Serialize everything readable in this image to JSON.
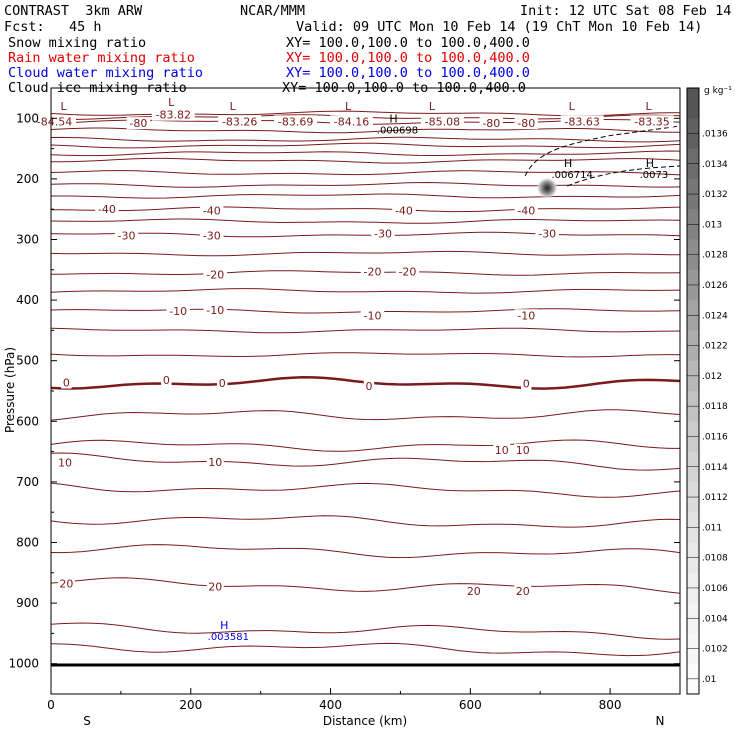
{
  "header": {
    "title": "CONTRAST  3km ARW",
    "org": "NCAR/MMM",
    "init": "Init: 12 UTC Sat 08 Feb 14",
    "fcst": "Fcst:   45 h",
    "valid": "Valid: 09 UTC Mon 10 Feb 14 (19 ChT Mon 10 Feb 14)",
    "fields": [
      {
        "name": "Snow mixing ratio",
        "xy": "XY= 100.0,100.0 to 100.0,400.0",
        "color": "#000000"
      },
      {
        "name": "Rain water mixing ratio",
        "xy": "XY= 100.0,100.0 to 100.0,400.0",
        "color": "#e00000"
      },
      {
        "name": "Cloud water mixing ratio",
        "xy": "XY= 100.0,100.0 to 100.0,400.0",
        "color": "#0000e0"
      },
      {
        "name": "Cloud ice mixing ratio",
        "xy": "XY= 100.0,100.0 to 100.0,400.0",
        "color": "#000000"
      }
    ]
  },
  "chart_data": {
    "type": "cross-section contour",
    "xlabel": "Distance (km)",
    "ylabel": "Pressure (hPa)",
    "xlim": [
      0,
      900
    ],
    "ylim": [
      1050,
      50
    ],
    "x_ticks": [
      "0",
      "200",
      "400",
      "600",
      "800"
    ],
    "x_tick_values": [
      0,
      200,
      400,
      600,
      800
    ],
    "y_ticks": [
      "100",
      "200",
      "300",
      "400",
      "500",
      "600",
      "700",
      "800",
      "900",
      "1000"
    ],
    "y_tick_values": [
      100,
      200,
      300,
      400,
      500,
      600,
      700,
      800,
      900,
      1000
    ],
    "endpoints": {
      "left": "S",
      "right": "N"
    },
    "colorbar": {
      "unit": "g kg⁻¹",
      "labels": [
        ".0136",
        ".0134",
        ".0132",
        ".013",
        ".0128",
        ".0126",
        ".0124",
        ".0122",
        ".012",
        ".0118",
        ".0116",
        ".0114",
        ".0112",
        ".011",
        ".0108",
        ".0106",
        ".0104",
        ".0102",
        ".01"
      ],
      "colors": [
        "#555555",
        "#606060",
        "#6c6c6c",
        "#777777",
        "#828282",
        "#8d8d8d",
        "#989898",
        "#a3a3a3",
        "#aeaeae",
        "#b8b8b8",
        "#c2c2c2",
        "#cbcbcb",
        "#d3d3d3",
        "#dbdbdb",
        "#e2e2e2",
        "#e8e8e8",
        "#eeeeee",
        "#f3f3f3",
        "#f7f7f7",
        "#fbfbfb"
      ]
    },
    "temperature_labels": [
      {
        "text": "-84.54",
        "x": 5,
        "p": 105
      },
      {
        "text": "-80",
        "x": 125,
        "p": 108
      },
      {
        "text": "-83.82",
        "x": 175,
        "p": 94
      },
      {
        "text": "-83.26",
        "x": 270,
        "p": 105
      },
      {
        "text": "-83.69",
        "x": 350,
        "p": 105
      },
      {
        "text": "-84.16",
        "x": 430,
        "p": 105
      },
      {
        "text": "-85.08",
        "x": 560,
        "p": 105
      },
      {
        "text": "-80",
        "x": 630,
        "p": 108
      },
      {
        "text": "-80",
        "x": 680,
        "p": 108
      },
      {
        "text": "-83.63",
        "x": 760,
        "p": 105
      },
      {
        "text": "-83.35",
        "x": 860,
        "p": 105
      },
      {
        "text": "-40",
        "x": 80,
        "p": 250
      },
      {
        "text": "-40",
        "x": 230,
        "p": 252
      },
      {
        "text": "-40",
        "x": 505,
        "p": 252
      },
      {
        "text": "-40",
        "x": 680,
        "p": 252
      },
      {
        "text": "-30",
        "x": 108,
        "p": 293
      },
      {
        "text": "-30",
        "x": 230,
        "p": 293
      },
      {
        "text": "-30",
        "x": 475,
        "p": 290
      },
      {
        "text": "-30",
        "x": 710,
        "p": 290
      },
      {
        "text": "-20",
        "x": 235,
        "p": 358
      },
      {
        "text": "-20",
        "x": 460,
        "p": 353
      },
      {
        "text": "-20",
        "x": 510,
        "p": 353
      },
      {
        "text": "-10",
        "x": 182,
        "p": 418
      },
      {
        "text": "-10",
        "x": 235,
        "p": 416
      },
      {
        "text": "-10",
        "x": 460,
        "p": 425
      },
      {
        "text": "-10",
        "x": 680,
        "p": 425
      },
      {
        "text": "0",
        "x": 22,
        "p": 536
      },
      {
        "text": "0",
        "x": 165,
        "p": 532
      },
      {
        "text": "0",
        "x": 245,
        "p": 537
      },
      {
        "text": "0",
        "x": 455,
        "p": 542
      },
      {
        "text": "0",
        "x": 680,
        "p": 538
      },
      {
        "text": "10",
        "x": 20,
        "p": 668
      },
      {
        "text": "10",
        "x": 235,
        "p": 667
      },
      {
        "text": "10",
        "x": 645,
        "p": 647
      },
      {
        "text": "10",
        "x": 675,
        "p": 647
      },
      {
        "text": "20",
        "x": 22,
        "p": 868
      },
      {
        "text": "20",
        "x": 235,
        "p": 873
      },
      {
        "text": "20",
        "x": 605,
        "p": 880
      },
      {
        "text": "20",
        "x": 675,
        "p": 880
      }
    ],
    "extrema": [
      {
        "mark": "L",
        "x": 18,
        "p": 86,
        "value": ""
      },
      {
        "mark": "L",
        "x": 172,
        "p": 80,
        "value": ""
      },
      {
        "mark": "L",
        "x": 260,
        "p": 86,
        "value": ""
      },
      {
        "mark": "L",
        "x": 425,
        "p": 86,
        "value": ""
      },
      {
        "mark": "L",
        "x": 545,
        "p": 86,
        "value": ""
      },
      {
        "mark": "L",
        "x": 745,
        "p": 86,
        "value": ""
      },
      {
        "mark": "L",
        "x": 855,
        "p": 86,
        "value": ""
      },
      {
        "mark": "H",
        "x": 490,
        "p": 107,
        "value": ".000698"
      },
      {
        "mark": "H",
        "x": 740,
        "p": 180,
        "value": ".006714"
      },
      {
        "mark": "H",
        "x": 857,
        "p": 180,
        "value": ".0073"
      },
      {
        "mark": "H",
        "x": 248,
        "p": 943,
        "value": ".003581"
      }
    ],
    "cloud_peak": {
      "x": 710,
      "p": 215
    }
  }
}
